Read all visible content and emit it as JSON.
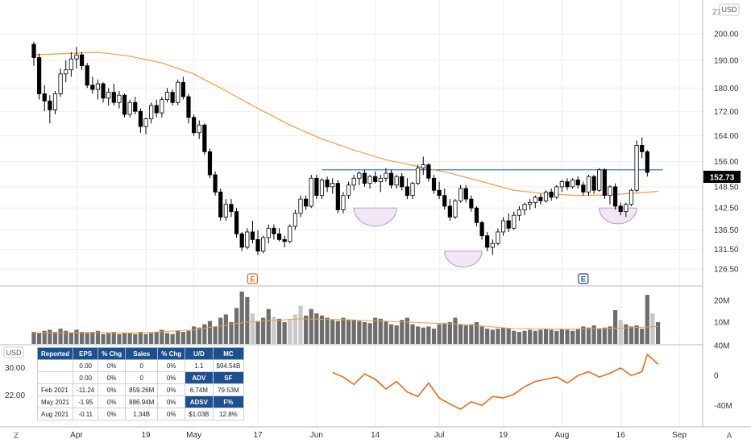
{
  "colors": {
    "up_fill": "#ffffff",
    "down_fill": "#000000",
    "candle_outline": "#000000",
    "moving_average": "#f59c3a",
    "resistance_line": "#1e6fd1",
    "pattern_fill": "#f1e6f4",
    "pattern_stroke": "#b79bc0",
    "volume_bar": "#6e6e6e",
    "volume_bar_light": "#c8c8c8",
    "volume_ma": "#f59c3a",
    "rs_line": "#ee6a12",
    "earnings_marker": "#e56a1e",
    "earnings_marker_2": "#1e4f8e",
    "price_tag_bg": "#000000",
    "price_tag_text": "#ffffff",
    "table_header": "#1e4f8e",
    "grid": "#eeeeee",
    "axis_text": "#333333"
  },
  "labels": {
    "currency_top": "USD",
    "currency_left": "USD",
    "z_button": "Z",
    "a_button": "A",
    "earnings_1": "E",
    "earnings_2": "E",
    "last_price": "152.73",
    "top_clip_label": "21"
  },
  "icons": {
    "earnings_1": "earnings-icon",
    "earnings_2": "earnings-icon"
  },
  "fundamentals": {
    "headers": [
      "Reported",
      "EPS",
      "% Chg",
      "Sales",
      "% Chg"
    ],
    "rows": [
      {
        "reported": "",
        "eps": "0.00",
        "eps_chg": "0%",
        "sales": "0",
        "sales_chg": "0%"
      },
      {
        "reported": "",
        "eps": "0.00",
        "eps_chg": "0%",
        "sales": "0",
        "sales_chg": "0%"
      },
      {
        "reported": "Feb 2021",
        "eps": "-11.24",
        "eps_chg": "0%",
        "sales": "859.26M",
        "sales_chg": "0%"
      },
      {
        "reported": "May 2021",
        "eps": "-1.95",
        "eps_chg": "0%",
        "sales": "886.94M",
        "sales_chg": "0%"
      },
      {
        "reported": "Aug 2021",
        "eps": "-0.11",
        "eps_chg": "0%",
        "sales": "1.34B",
        "sales_chg": "0%"
      }
    ],
    "stats": {
      "ud_label": "U/D",
      "mc_label": "MC",
      "ud": "1.1",
      "mc": "$94.54B",
      "adv_label": "ADV",
      "sf_label": "SF",
      "adv": "6.74M",
      "sf": "79.53M",
      "adsv_label": "ADSV",
      "fp_label": "F%",
      "adsv": "$1.03B",
      "fp": "12.8%"
    }
  },
  "chart_data": {
    "type": "candlestick",
    "x_ticks": [
      "Apr",
      "19",
      "May",
      "17",
      "Jun",
      "14",
      "Jul",
      "19",
      "Aug",
      "16",
      "Sep"
    ],
    "price_axis": {
      "scale": "log",
      "ticks": [
        "200.00",
        "190.00",
        "180.00",
        "172.00",
        "164.00",
        "156.00",
        "148.50",
        "142.50",
        "136.50",
        "131.50",
        "126.50"
      ],
      "range": [
        123,
        212
      ]
    },
    "resistance_level": 153.5,
    "last_close": 152.73,
    "candles": [
      [
        196.0,
        197.0,
        188.0,
        191.0
      ],
      [
        191.0,
        192.5,
        176.0,
        178.0
      ],
      [
        178.0,
        181.0,
        172.0,
        175.5
      ],
      [
        175.5,
        177.5,
        168.0,
        172.5
      ],
      [
        172.5,
        179.0,
        171.0,
        178.0
      ],
      [
        178.0,
        187.0,
        177.0,
        185.0
      ],
      [
        185.0,
        190.0,
        182.0,
        186.5
      ],
      [
        186.5,
        193.0,
        184.0,
        190.5
      ],
      [
        190.5,
        195.0,
        187.0,
        192.0
      ],
      [
        192.0,
        193.0,
        186.5,
        188.0
      ],
      [
        188.0,
        189.0,
        180.0,
        181.0
      ],
      [
        181.0,
        184.0,
        178.0,
        179.5
      ],
      [
        179.5,
        183.0,
        176.0,
        181.5
      ],
      [
        181.5,
        182.0,
        175.0,
        176.5
      ],
      [
        176.5,
        180.0,
        174.0,
        178.5
      ],
      [
        178.5,
        181.5,
        174.0,
        175.0
      ],
      [
        175.0,
        179.0,
        173.0,
        177.5
      ],
      [
        177.5,
        178.0,
        170.0,
        171.0
      ],
      [
        171.0,
        176.0,
        170.0,
        175.0
      ],
      [
        175.0,
        177.0,
        171.0,
        172.0
      ],
      [
        172.0,
        173.0,
        165.0,
        167.0
      ],
      [
        167.0,
        170.0,
        164.5,
        169.5
      ],
      [
        169.5,
        175.0,
        168.0,
        174.0
      ],
      [
        174.0,
        176.0,
        170.0,
        171.5
      ],
      [
        171.5,
        177.0,
        170.0,
        176.0
      ],
      [
        176.0,
        180.0,
        175.0,
        178.5
      ],
      [
        178.5,
        179.5,
        174.0,
        175.0
      ],
      [
        175.0,
        183.0,
        174.0,
        182.0
      ],
      [
        182.0,
        184.0,
        176.0,
        177.0
      ],
      [
        177.0,
        178.0,
        168.0,
        170.0
      ],
      [
        170.0,
        171.0,
        164.0,
        165.0
      ],
      [
        165.0,
        169.0,
        163.0,
        167.5
      ],
      [
        167.5,
        168.0,
        158.0,
        159.0
      ],
      [
        159.0,
        160.0,
        151.0,
        152.0
      ],
      [
        152.0,
        153.0,
        146.0,
        147.0
      ],
      [
        147.0,
        148.0,
        139.0,
        140.0
      ],
      [
        140.0,
        145.0,
        139.0,
        143.5
      ],
      [
        143.5,
        145.0,
        140.0,
        141.5
      ],
      [
        141.5,
        142.5,
        134.5,
        135.5
      ],
      [
        135.5,
        136.0,
        131.0,
        132.0
      ],
      [
        132.0,
        137.0,
        131.5,
        136.0
      ],
      [
        136.0,
        139.0,
        133.0,
        134.0
      ],
      [
        134.0,
        136.5,
        130.0,
        131.0
      ],
      [
        131.0,
        135.0,
        130.5,
        134.5
      ],
      [
        134.5,
        138.0,
        133.0,
        137.0
      ],
      [
        137.0,
        138.0,
        134.0,
        135.5
      ],
      [
        135.5,
        137.0,
        133.5,
        134.0
      ],
      [
        134.0,
        135.0,
        132.0,
        133.5
      ],
      [
        133.5,
        138.0,
        133.0,
        137.5
      ],
      [
        137.5,
        142.0,
        136.5,
        141.0
      ],
      [
        141.0,
        146.0,
        140.0,
        145.0
      ],
      [
        145.0,
        146.0,
        142.0,
        143.0
      ],
      [
        143.0,
        152.0,
        142.5,
        151.0
      ],
      [
        151.0,
        152.0,
        145.0,
        146.0
      ],
      [
        146.0,
        151.0,
        145.0,
        150.5
      ],
      [
        150.5,
        151.5,
        147.0,
        148.5
      ],
      [
        148.5,
        151.0,
        146.5,
        149.5
      ],
      [
        149.5,
        150.5,
        141.0,
        142.0
      ],
      [
        142.0,
        147.0,
        141.0,
        146.0
      ],
      [
        146.0,
        150.0,
        145.0,
        149.0
      ],
      [
        149.0,
        152.0,
        147.5,
        151.0
      ],
      [
        151.0,
        153.0,
        149.0,
        152.5
      ],
      [
        152.5,
        153.5,
        148.5,
        149.5
      ],
      [
        149.5,
        152.0,
        148.0,
        151.5
      ],
      [
        151.5,
        153.0,
        149.5,
        150.0
      ],
      [
        150.0,
        152.0,
        147.0,
        151.0
      ],
      [
        151.0,
        154.0,
        150.0,
        152.5
      ],
      [
        152.5,
        153.5,
        148.0,
        149.0
      ],
      [
        149.0,
        152.0,
        148.0,
        151.5
      ],
      [
        151.5,
        152.5,
        147.5,
        148.5
      ],
      [
        148.5,
        151.0,
        145.0,
        146.0
      ],
      [
        146.0,
        150.0,
        145.0,
        149.5
      ],
      [
        149.5,
        155.0,
        149.0,
        154.0
      ],
      [
        154.0,
        157.5,
        152.0,
        155.0
      ],
      [
        155.0,
        155.5,
        150.0,
        151.0
      ],
      [
        151.0,
        152.0,
        146.5,
        147.5
      ],
      [
        147.5,
        150.0,
        145.0,
        146.0
      ],
      [
        146.0,
        148.0,
        142.0,
        143.0
      ],
      [
        143.0,
        145.0,
        139.0,
        140.0
      ],
      [
        140.0,
        145.0,
        139.5,
        144.5
      ],
      [
        144.5,
        149.0,
        144.0,
        148.0
      ],
      [
        148.0,
        149.0,
        144.0,
        145.0
      ],
      [
        145.0,
        146.0,
        141.5,
        142.5
      ],
      [
        142.5,
        143.0,
        137.5,
        138.5
      ],
      [
        138.5,
        139.0,
        134.0,
        135.0
      ],
      [
        135.0,
        136.0,
        131.0,
        132.0
      ],
      [
        132.0,
        134.0,
        130.0,
        133.0
      ],
      [
        133.0,
        137.0,
        132.5,
        136.0
      ],
      [
        136.0,
        140.0,
        135.0,
        139.0
      ],
      [
        139.0,
        141.0,
        136.0,
        137.0
      ],
      [
        137.0,
        141.5,
        136.5,
        140.5
      ],
      [
        140.5,
        143.0,
        139.0,
        142.0
      ],
      [
        142.0,
        144.0,
        140.5,
        143.5
      ],
      [
        143.5,
        145.0,
        142.0,
        144.0
      ],
      [
        144.0,
        146.0,
        142.5,
        145.5
      ],
      [
        145.5,
        146.5,
        143.5,
        144.5
      ],
      [
        144.5,
        147.5,
        144.0,
        147.0
      ],
      [
        147.0,
        148.0,
        144.5,
        145.5
      ],
      [
        145.5,
        149.0,
        145.0,
        148.5
      ],
      [
        148.5,
        150.5,
        147.0,
        150.0
      ],
      [
        150.0,
        151.0,
        147.5,
        148.5
      ],
      [
        148.5,
        151.0,
        148.0,
        150.5
      ],
      [
        150.5,
        151.5,
        148.0,
        149.0
      ],
      [
        149.0,
        150.0,
        146.0,
        147.0
      ],
      [
        147.0,
        152.0,
        146.0,
        151.5
      ],
      [
        151.5,
        152.0,
        146.5,
        147.5
      ],
      [
        147.5,
        154.0,
        147.0,
        153.5
      ],
      [
        153.5,
        154.0,
        145.0,
        146.0
      ],
      [
        146.0,
        149.0,
        143.5,
        148.5
      ],
      [
        148.5,
        149.5,
        142.0,
        143.0
      ],
      [
        143.0,
        144.0,
        140.5,
        141.5
      ],
      [
        141.5,
        144.0,
        140.0,
        143.5
      ],
      [
        143.5,
        148.0,
        143.0,
        147.5
      ],
      [
        147.5,
        162.5,
        147.0,
        161.0
      ],
      [
        161.0,
        163.5,
        157.0,
        159.0
      ],
      [
        159.0,
        159.5,
        151.5,
        152.73
      ]
    ],
    "moving_average": [
      [
        0,
        192.0
      ],
      [
        6,
        192.5
      ],
      [
        12,
        193.0
      ],
      [
        18,
        191.5
      ],
      [
        24,
        189.0
      ],
      [
        30,
        185.0
      ],
      [
        36,
        179.0
      ],
      [
        42,
        173.0
      ],
      [
        48,
        167.5
      ],
      [
        54,
        163.0
      ],
      [
        60,
        159.5
      ],
      [
        66,
        156.5
      ],
      [
        72,
        154.5
      ],
      [
        78,
        152.5
      ],
      [
        84,
        150.0
      ],
      [
        90,
        147.5
      ],
      [
        96,
        146.5
      ],
      [
        102,
        146.0
      ],
      [
        108,
        146.2
      ],
      [
        114,
        146.8
      ],
      [
        117,
        147.2
      ]
    ],
    "cup_patterns": [
      {
        "start": 60,
        "end": 68,
        "top": 142.5
      },
      {
        "start": 77,
        "end": 84,
        "top": 131.0
      },
      {
        "start": 106,
        "end": 113,
        "top": 142.5
      }
    ],
    "earnings_markers": [
      41,
      103
    ],
    "volume": {
      "axis_ticks": [
        "20M",
        "10M"
      ],
      "range": [
        0,
        24
      ],
      "values": [
        5.5,
        5.0,
        6.0,
        6.5,
        5.5,
        7.0,
        6.0,
        5.0,
        6.5,
        5.5,
        5.0,
        5.5,
        6.0,
        4.5,
        5.0,
        5.5,
        4.5,
        5.0,
        5.0,
        4.5,
        5.5,
        4.5,
        5.0,
        5.5,
        6.5,
        5.0,
        4.5,
        6.0,
        5.5,
        6.0,
        8.0,
        7.5,
        9.0,
        10.5,
        8.0,
        12.0,
        13.5,
        10.0,
        16.5,
        24.0,
        21.5,
        14.0,
        10.5,
        12.0,
        16.0,
        12.5,
        11.5,
        10.0,
        11.5,
        13.5,
        17.5,
        13.0,
        16.0,
        14.0,
        13.0,
        12.0,
        11.0,
        10.5,
        12.0,
        11.0,
        11.0,
        10.5,
        10.0,
        9.5,
        12.0,
        11.5,
        10.5,
        9.0,
        8.5,
        11.0,
        12.0,
        9.0,
        8.0,
        7.5,
        8.0,
        7.0,
        9.0,
        9.5,
        10.0,
        12.0,
        9.0,
        8.5,
        9.0,
        10.0,
        8.0,
        7.0,
        6.5,
        7.0,
        7.5,
        7.0,
        6.0,
        5.5,
        6.0,
        6.5,
        6.0,
        6.5,
        7.0,
        6.5,
        6.0,
        7.0,
        6.5,
        6.0,
        7.0,
        8.0,
        7.5,
        8.5,
        7.0,
        7.5,
        8.0,
        15.5,
        11.0,
        9.0,
        8.0,
        8.5,
        7.0,
        22.5,
        14.0,
        10.0
      ],
      "light_bars": [
        41,
        45,
        48,
        49,
        50,
        110,
        116
      ],
      "ma": [
        [
          0,
          5.0
        ],
        [
          10,
          5.2
        ],
        [
          20,
          5.0
        ],
        [
          30,
          6.5
        ],
        [
          40,
          10.0
        ],
        [
          50,
          11.5
        ],
        [
          60,
          11.0
        ],
        [
          70,
          10.0
        ],
        [
          80,
          9.0
        ],
        [
          90,
          7.0
        ],
        [
          100,
          6.8
        ],
        [
          110,
          7.2
        ],
        [
          117,
          8.0
        ]
      ]
    },
    "rs_line": {
      "left_ticks": [
        "30.00",
        "22.00"
      ],
      "right_ticks": [
        "40M",
        "0",
        "-40M"
      ],
      "range": [
        -60,
        40
      ],
      "points": [
        [
          56,
          4
        ],
        [
          58,
          -2
        ],
        [
          60,
          -12
        ],
        [
          62,
          2
        ],
        [
          64,
          -5
        ],
        [
          66,
          -18
        ],
        [
          68,
          -8
        ],
        [
          70,
          -22
        ],
        [
          72,
          -28
        ],
        [
          74,
          -10
        ],
        [
          76,
          -30
        ],
        [
          78,
          -38
        ],
        [
          80,
          -45
        ],
        [
          82,
          -35
        ],
        [
          84,
          -40
        ],
        [
          86,
          -28
        ],
        [
          88,
          -30
        ],
        [
          90,
          -25
        ],
        [
          92,
          -15
        ],
        [
          94,
          -8
        ],
        [
          96,
          -5
        ],
        [
          98,
          -2
        ],
        [
          100,
          -10
        ],
        [
          102,
          0
        ],
        [
          104,
          5
        ],
        [
          106,
          -2
        ],
        [
          108,
          3
        ],
        [
          110,
          10
        ],
        [
          112,
          0
        ],
        [
          114,
          5
        ],
        [
          115,
          28
        ],
        [
          116,
          22
        ],
        [
          117,
          15
        ]
      ]
    }
  }
}
